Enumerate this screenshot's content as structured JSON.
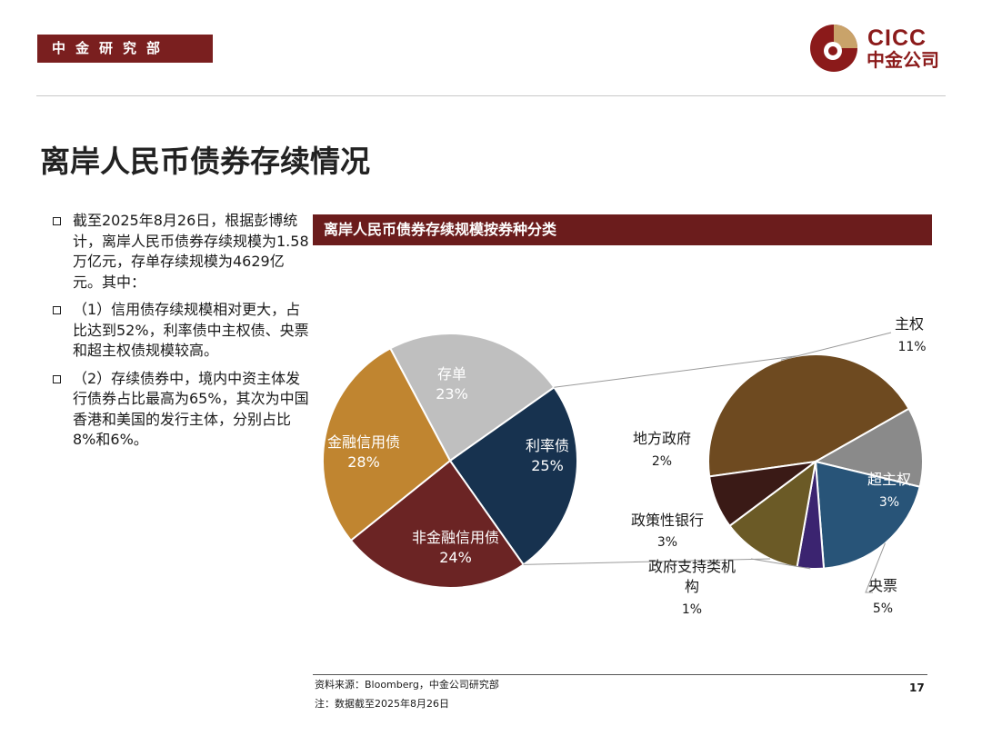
{
  "header": {
    "department": "中金研究部"
  },
  "logo": {
    "en": "CICC",
    "cn": "中金公司"
  },
  "page_title": "离岸人民币债券存续情况",
  "bullets": [
    "截至2025年8月26日，根据彭博统计，离岸人民币债券存续规模为1.58万亿元，存单存续规模为4629亿元。其中：",
    "（1）信用债存续规模相对更大，占比达到52%，利率债中主权债、央票和超主权债规模较高。",
    "（2）存续债券中，境内中资主体发行债券占比最高为65%，其次为中国香港和美国的发行主体，分别占比8%和6%。"
  ],
  "chart_banner": "离岸人民币债券存续规模按券种分类",
  "chart_data": [
    {
      "type": "pie",
      "title": "",
      "slices": [
        {
          "label": "存单",
          "value": 23,
          "pct_label": "23%",
          "color": "#bfbfbf"
        },
        {
          "label": "利率债",
          "value": 25,
          "pct_label": "25%",
          "color": "#17324f"
        },
        {
          "label": "非金融信用债",
          "value": 24,
          "pct_label": "24%",
          "color": "#6b2424"
        },
        {
          "label": "金融信用债",
          "value": 28,
          "pct_label": "28%",
          "color": "#c08530"
        }
      ]
    },
    {
      "type": "pie",
      "title": "",
      "breakout_of": "利率债",
      "slices": [
        {
          "label": "主权",
          "value": 11,
          "pct_label": "11%",
          "color": "#6e4a20"
        },
        {
          "label": "超主权",
          "value": 3,
          "pct_label": "3%",
          "color": "#8a8a8a"
        },
        {
          "label": "央票",
          "value": 5,
          "pct_label": "5%",
          "color": "#285478"
        },
        {
          "label": "政府支持类机构",
          "value": 1,
          "pct_label": "1%",
          "color": "#3b2470"
        },
        {
          "label": "政策性银行",
          "value": 3,
          "pct_label": "3%",
          "color": "#6b5a26"
        },
        {
          "label": "地方政府",
          "value": 2,
          "pct_label": "2%",
          "color": "#3a1a16"
        }
      ]
    }
  ],
  "footer": {
    "source": "资料来源：Bloomberg，中金公司研究部",
    "note": "注：数据截至2025年8月26日",
    "page_number": "17"
  }
}
